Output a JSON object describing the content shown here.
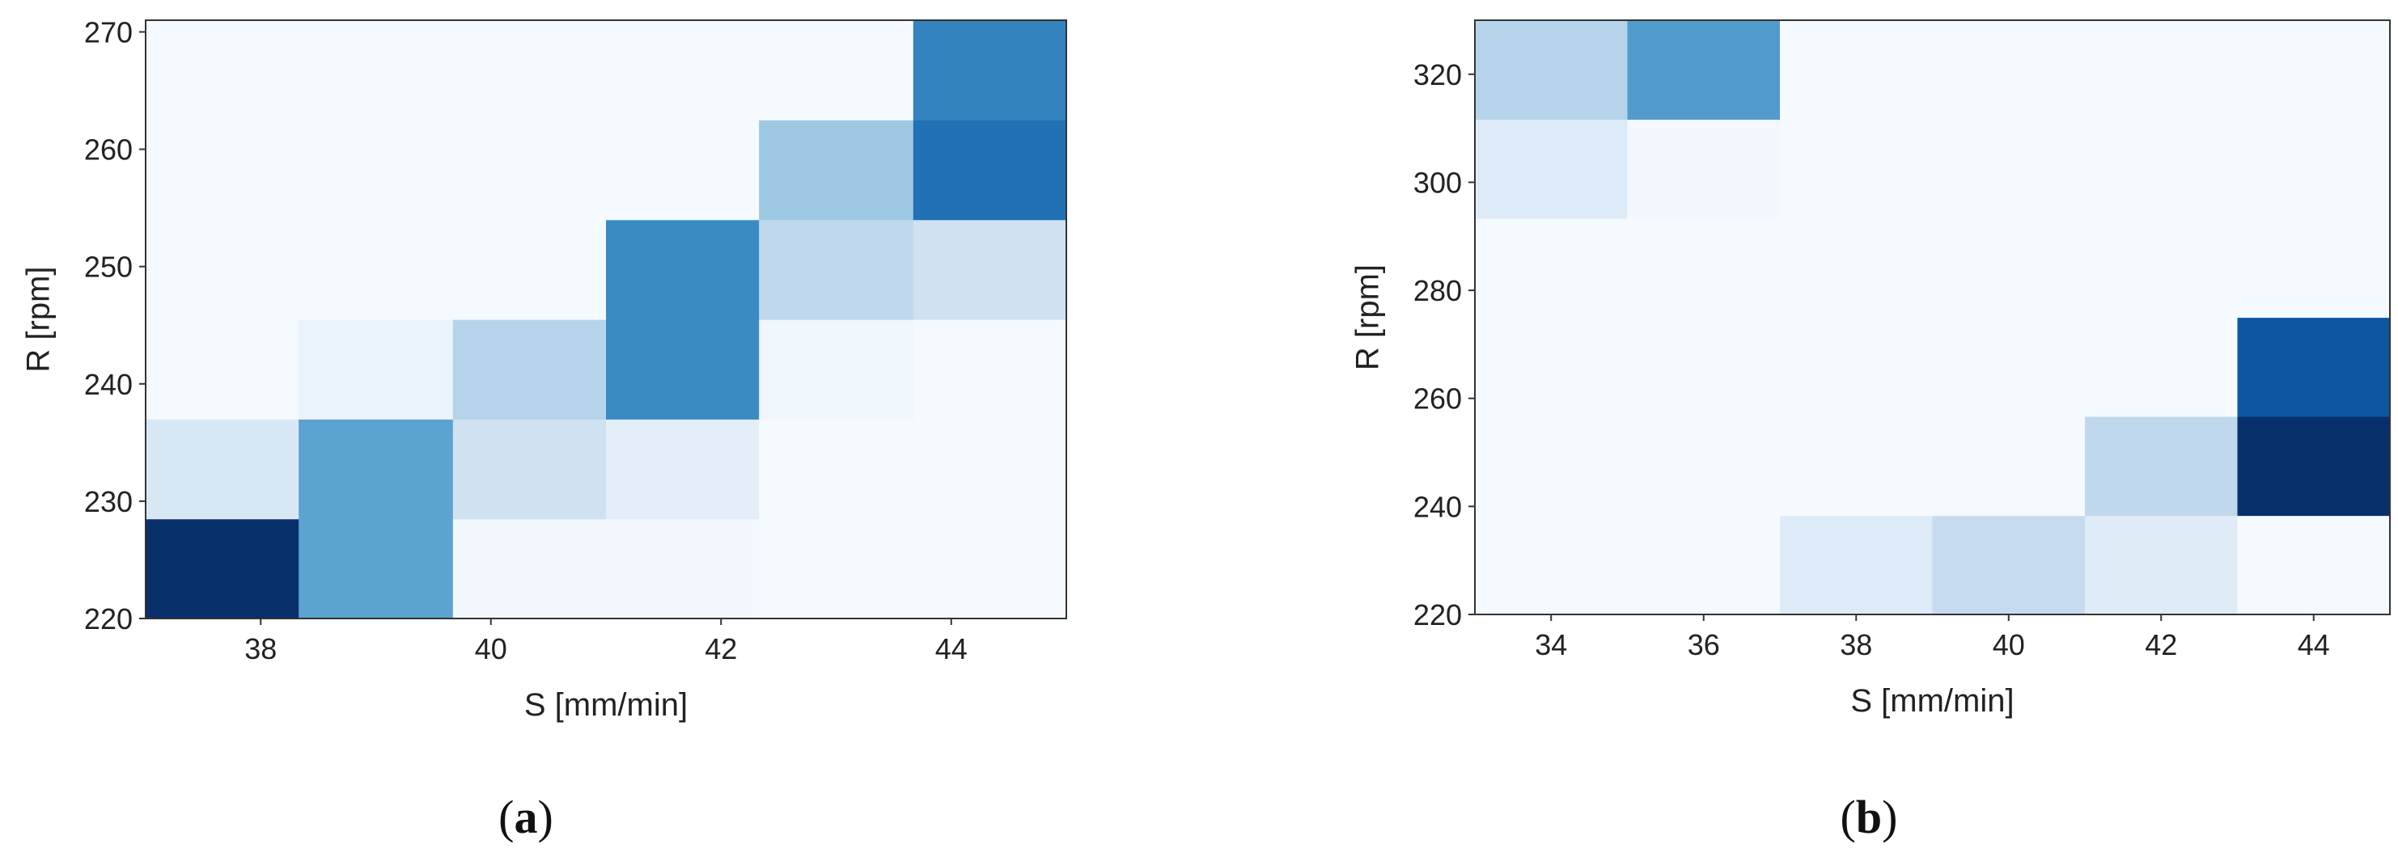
{
  "colors": {
    "colormap": "Blues",
    "low": "#f7fbff",
    "high": "#08306b",
    "frame": "#333333"
  },
  "chart_data": [
    {
      "type": "heatmap",
      "caption": "a",
      "xlabel": "S [mm/min]",
      "ylabel": "R [rpm]",
      "xlim": [
        37,
        45
      ],
      "ylim": [
        220,
        271
      ],
      "xticks": [
        38,
        40,
        42,
        44
      ],
      "yticks": [
        220,
        230,
        240,
        250,
        260,
        270
      ],
      "x_edges": [
        37,
        38.33,
        39.67,
        41,
        42.33,
        43.67,
        45
      ],
      "y_edges": [
        220,
        228.5,
        237,
        245.5,
        254,
        262.5,
        271
      ],
      "values": [
        [
          1.0,
          0.55,
          0.03,
          0.02,
          0.01,
          0.01
        ],
        [
          0.15,
          0.55,
          0.2,
          0.1,
          0.01,
          0.01
        ],
        [
          0.01,
          0.06,
          0.3,
          0.65,
          0.04,
          0.01
        ],
        [
          0.01,
          0.01,
          0.01,
          0.65,
          0.27,
          0.2
        ],
        [
          0.01,
          0.01,
          0.01,
          0.01,
          0.38,
          0.75
        ],
        [
          0.01,
          0.01,
          0.01,
          0.01,
          0.01,
          0.68
        ]
      ],
      "grid": false
    },
    {
      "type": "heatmap",
      "caption": "b",
      "xlabel": "S [mm/min]",
      "ylabel": "R [rpm]",
      "xlim": [
        33,
        45
      ],
      "ylim": [
        220,
        330
      ],
      "xticks": [
        34,
        36,
        38,
        40,
        42,
        44
      ],
      "yticks": [
        220,
        240,
        260,
        280,
        300,
        320
      ],
      "x_edges": [
        33,
        35,
        37,
        39,
        41,
        43,
        45
      ],
      "y_edges": [
        220,
        238.33,
        256.67,
        275,
        293.33,
        311.67,
        330
      ],
      "values": [
        [
          0.01,
          0.01,
          0.13,
          0.25,
          0.12,
          0.01
        ],
        [
          0.01,
          0.01,
          0.01,
          0.01,
          0.27,
          1.0
        ],
        [
          0.01,
          0.01,
          0.01,
          0.01,
          0.01,
          0.85
        ],
        [
          0.01,
          0.01,
          0.01,
          0.01,
          0.01,
          0.01
        ],
        [
          0.13,
          0.02,
          0.01,
          0.01,
          0.01,
          0.01
        ],
        [
          0.3,
          0.58,
          0.01,
          0.01,
          0.01,
          0.01
        ]
      ],
      "grid": false
    }
  ]
}
